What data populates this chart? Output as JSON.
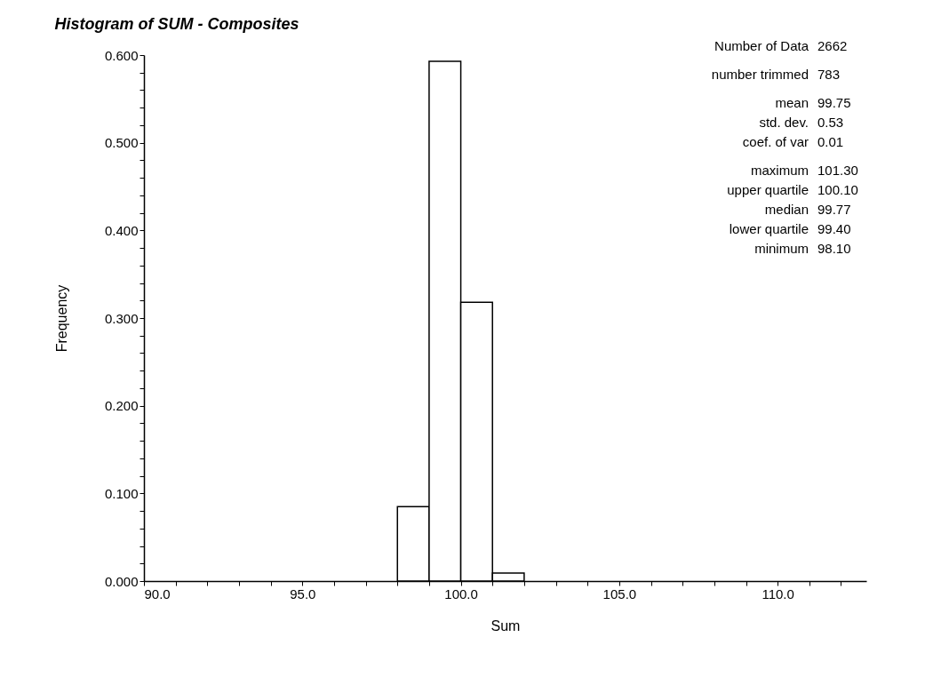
{
  "chart_data": {
    "type": "histogram",
    "title": "Histogram of SUM - Composites",
    "xlabel": "Sum",
    "ylabel": "Frequency",
    "bins": [
      98,
      99,
      100,
      101,
      102
    ],
    "values": [
      0.085,
      0.593,
      0.318,
      0.009
    ],
    "color": "#ffffff",
    "xlim": [
      90,
      112.8
    ],
    "ylim": [
      0,
      0.6
    ],
    "xticks": [
      {
        "value": 90,
        "label": "90.0"
      },
      {
        "value": 91,
        "label": null
      },
      {
        "value": 92,
        "label": null
      },
      {
        "value": 93,
        "label": null
      },
      {
        "value": 94,
        "label": null
      },
      {
        "value": 95,
        "label": "95.0"
      },
      {
        "value": 96,
        "label": null
      },
      {
        "value": 97,
        "label": null
      },
      {
        "value": 98,
        "label": null
      },
      {
        "value": 99,
        "label": null
      },
      {
        "value": 100,
        "label": "100.0"
      },
      {
        "value": 101,
        "label": null
      },
      {
        "value": 102,
        "label": null
      },
      {
        "value": 103,
        "label": null
      },
      {
        "value": 104,
        "label": null
      },
      {
        "value": 105,
        "label": "105.0"
      },
      {
        "value": 106,
        "label": null
      },
      {
        "value": 107,
        "label": null
      },
      {
        "value": 108,
        "label": null
      },
      {
        "value": 109,
        "label": null
      },
      {
        "value": 110,
        "label": "110.0"
      },
      {
        "value": 111,
        "label": null
      },
      {
        "value": 112,
        "label": null
      }
    ],
    "yticks": [
      {
        "value": 0,
        "label": "0.000"
      },
      {
        "value": 0.02,
        "label": null
      },
      {
        "value": 0.04,
        "label": null
      },
      {
        "value": 0.06,
        "label": null
      },
      {
        "value": 0.08,
        "label": null
      },
      {
        "value": 0.1,
        "label": "0.100"
      },
      {
        "value": 0.12,
        "label": null
      },
      {
        "value": 0.14,
        "label": null
      },
      {
        "value": 0.16,
        "label": null
      },
      {
        "value": 0.18,
        "label": null
      },
      {
        "value": 0.2,
        "label": "0.200"
      },
      {
        "value": 0.22,
        "label": null
      },
      {
        "value": 0.24,
        "label": null
      },
      {
        "value": 0.26,
        "label": null
      },
      {
        "value": 0.28,
        "label": null
      },
      {
        "value": 0.3,
        "label": "0.300"
      },
      {
        "value": 0.32,
        "label": null
      },
      {
        "value": 0.34,
        "label": null
      },
      {
        "value": 0.36,
        "label": null
      },
      {
        "value": 0.38,
        "label": null
      },
      {
        "value": 0.4,
        "label": "0.400"
      },
      {
        "value": 0.42,
        "label": null
      },
      {
        "value": 0.44,
        "label": null
      },
      {
        "value": 0.46,
        "label": null
      },
      {
        "value": 0.48,
        "label": null
      },
      {
        "value": 0.5,
        "label": "0.500"
      },
      {
        "value": 0.52,
        "label": null
      },
      {
        "value": 0.54,
        "label": null
      },
      {
        "value": 0.56,
        "label": null
      },
      {
        "value": 0.58,
        "label": null
      },
      {
        "value": 0.6,
        "label": "0.600"
      }
    ],
    "grid": false,
    "annotations": [
      "Number of Data 2662",
      "number trimmed 783",
      "mean 99.75",
      "std. dev. 0.53",
      "coef. of var 0.01",
      "maximum 101.30",
      "upper quartile 100.10",
      "median 99.77",
      "lower quartile 99.40",
      "minimum 98.10"
    ]
  }
}
